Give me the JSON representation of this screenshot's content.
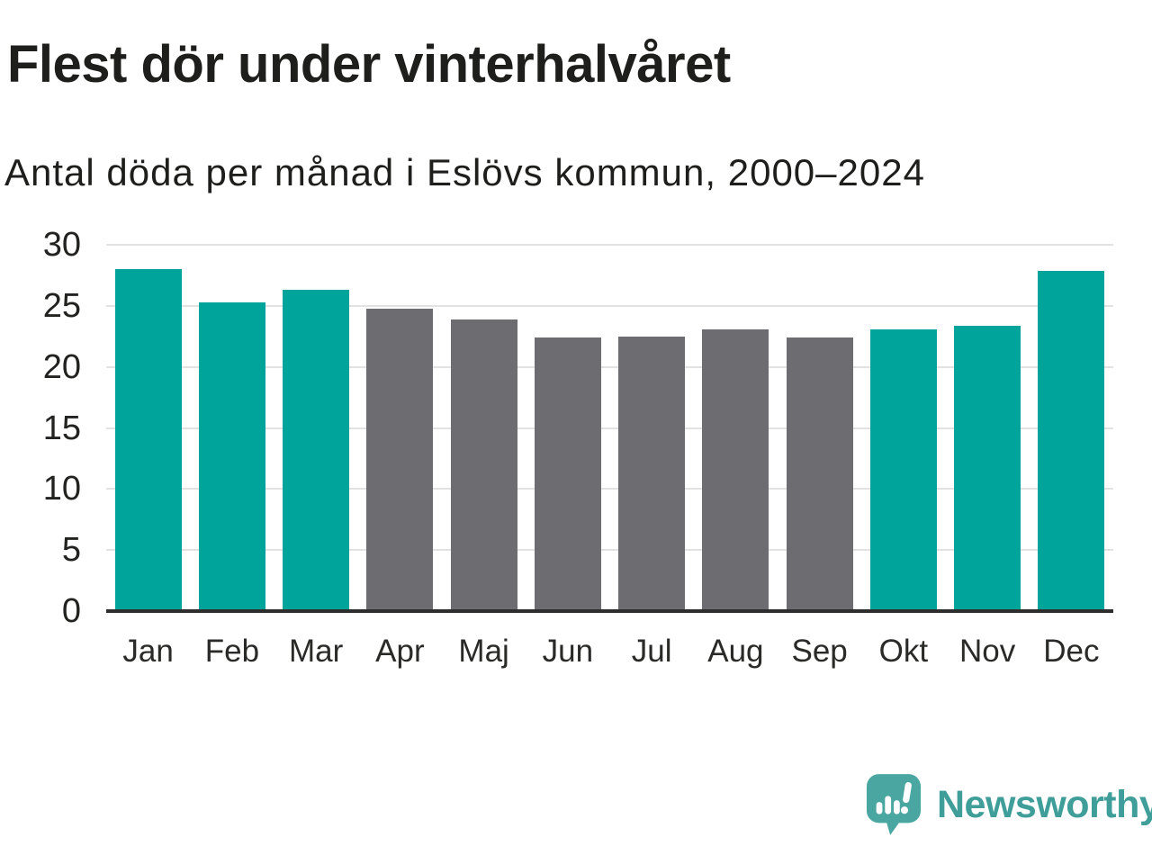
{
  "header": {
    "title": "Flest dör under vinterhalvåret",
    "subtitle": "Antal döda per månad i Eslövs kommun, 2000–2024"
  },
  "chart_data": {
    "type": "bar",
    "title": "Flest dör under vinterhalvåret",
    "subtitle": "Antal döda per månad i Eslövs kommun, 2000–2024",
    "categories": [
      "Jan",
      "Feb",
      "Mar",
      "Apr",
      "Maj",
      "Jun",
      "Jul",
      "Aug",
      "Sep",
      "Okt",
      "Nov",
      "Dec"
    ],
    "values": [
      28.0,
      25.3,
      26.3,
      24.8,
      23.9,
      22.4,
      22.5,
      23.1,
      22.4,
      23.1,
      23.4,
      27.9
    ],
    "bar_colors": [
      "winter",
      "winter",
      "winter",
      "summer",
      "summer",
      "summer",
      "summer",
      "summer",
      "summer",
      "winter",
      "winter",
      "winter"
    ],
    "colors": {
      "winter": "#00a49a",
      "summer": "#6d6d71"
    },
    "xlabel": "",
    "ylabel": "",
    "ylim": [
      0,
      30
    ],
    "yticks": [
      0,
      5,
      10,
      15,
      20,
      25,
      30
    ],
    "grid": "horizontal",
    "legend": "none",
    "axis_color": "#2e2e2e",
    "gridline_color": "#e2e2e2"
  },
  "footer": {
    "brand": "Newsworthy",
    "brand_text_color": "#3f9e99",
    "brand_mark_color": "#4aa6a1",
    "logo_icon": "newsworthy-bar-chart-speech-bubble-icon"
  }
}
